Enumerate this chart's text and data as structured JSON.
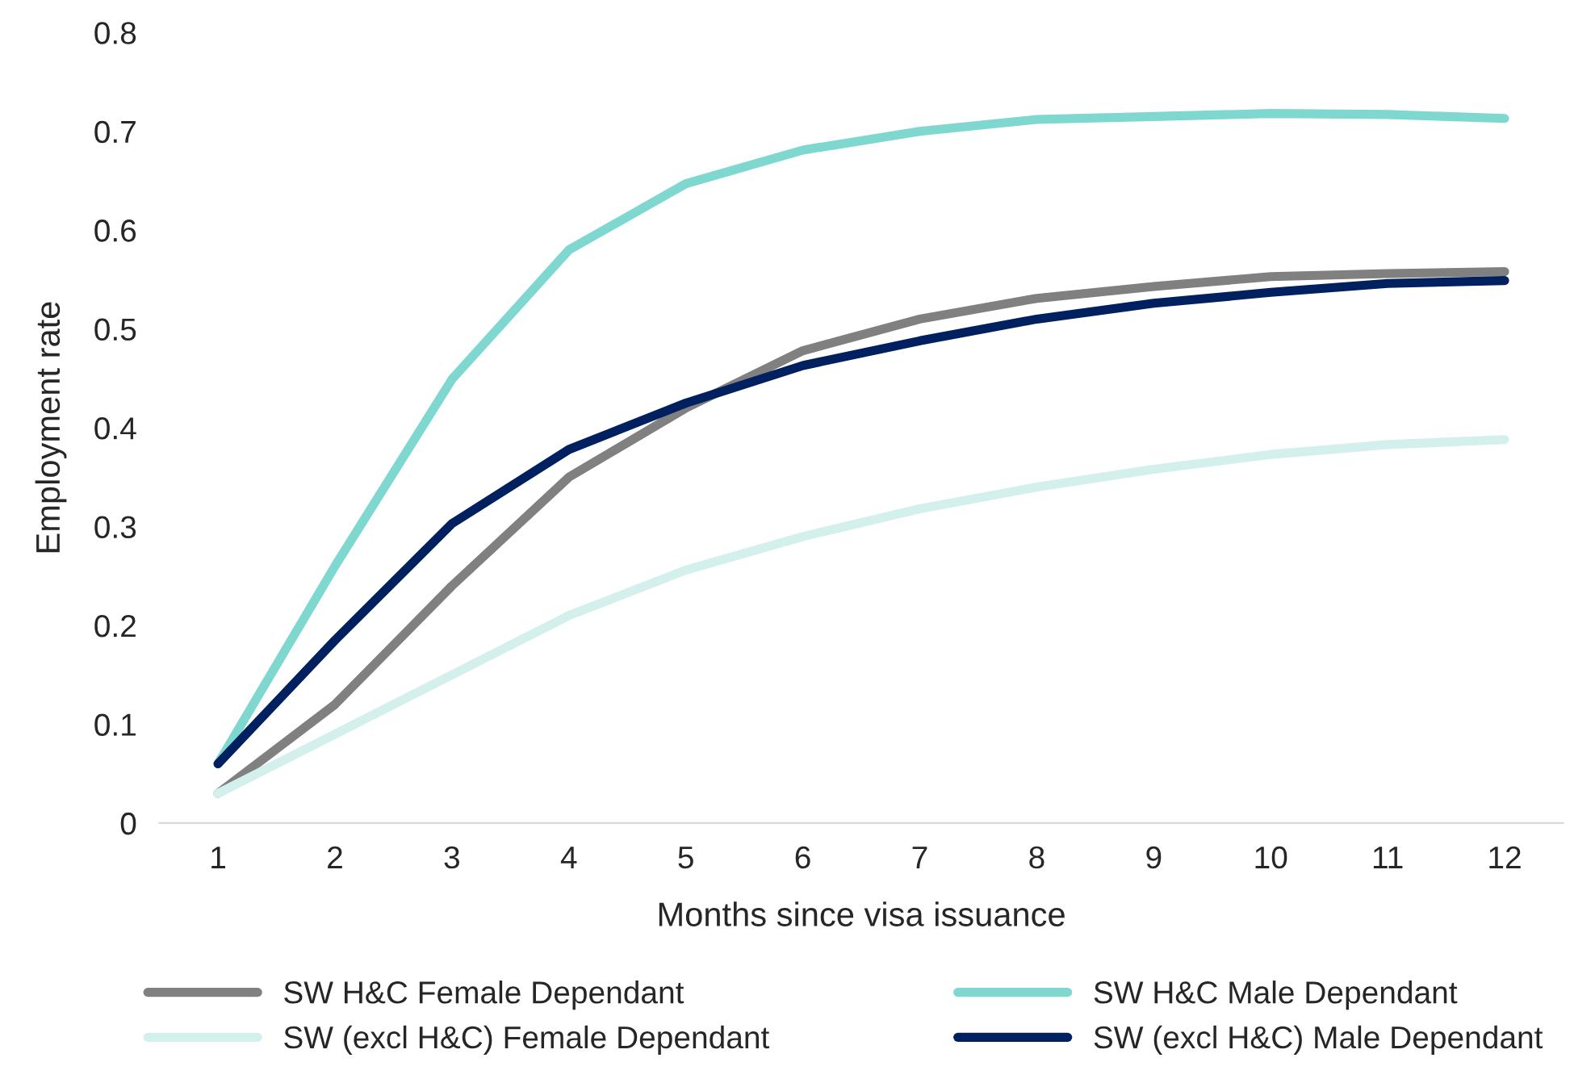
{
  "chart_data": {
    "type": "line",
    "xlabel": "Months since visa issuance",
    "ylabel": "Employment rate",
    "categories": [
      "1",
      "2",
      "3",
      "4",
      "5",
      "6",
      "7",
      "8",
      "9",
      "10",
      "11",
      "12"
    ],
    "series": [
      {
        "name": "SW H&C Female Dependant",
        "color": "#808080",
        "values": [
          0.03,
          0.12,
          0.24,
          0.35,
          0.42,
          0.478,
          0.51,
          0.531,
          0.543,
          0.553,
          0.556,
          0.558
        ]
      },
      {
        "name": "SW H&C Male Dependant",
        "color": "#7fd8cf",
        "values": [
          0.06,
          0.26,
          0.449,
          0.58,
          0.647,
          0.681,
          0.7,
          0.712,
          0.715,
          0.718,
          0.717,
          0.713
        ]
      },
      {
        "name": "SW (excl H&C) Female Dependant",
        "color": "#d3f0ec",
        "values": [
          0.03,
          0.09,
          0.15,
          0.21,
          0.256,
          0.29,
          0.318,
          0.34,
          0.358,
          0.373,
          0.383,
          0.388
        ]
      },
      {
        "name": "SW (excl H&C) Male Dependant",
        "color": "#002060",
        "values": [
          0.06,
          0.185,
          0.303,
          0.378,
          0.425,
          0.463,
          0.488,
          0.51,
          0.526,
          0.537,
          0.546,
          0.549
        ]
      }
    ],
    "ylim": [
      0,
      0.8
    ],
    "yticks": [
      0,
      0.1,
      0.2,
      0.3,
      0.4,
      0.5,
      0.6,
      0.7,
      0.8
    ],
    "grid": false,
    "legend": "bottom",
    "marker": "none",
    "line_style": "solid"
  }
}
